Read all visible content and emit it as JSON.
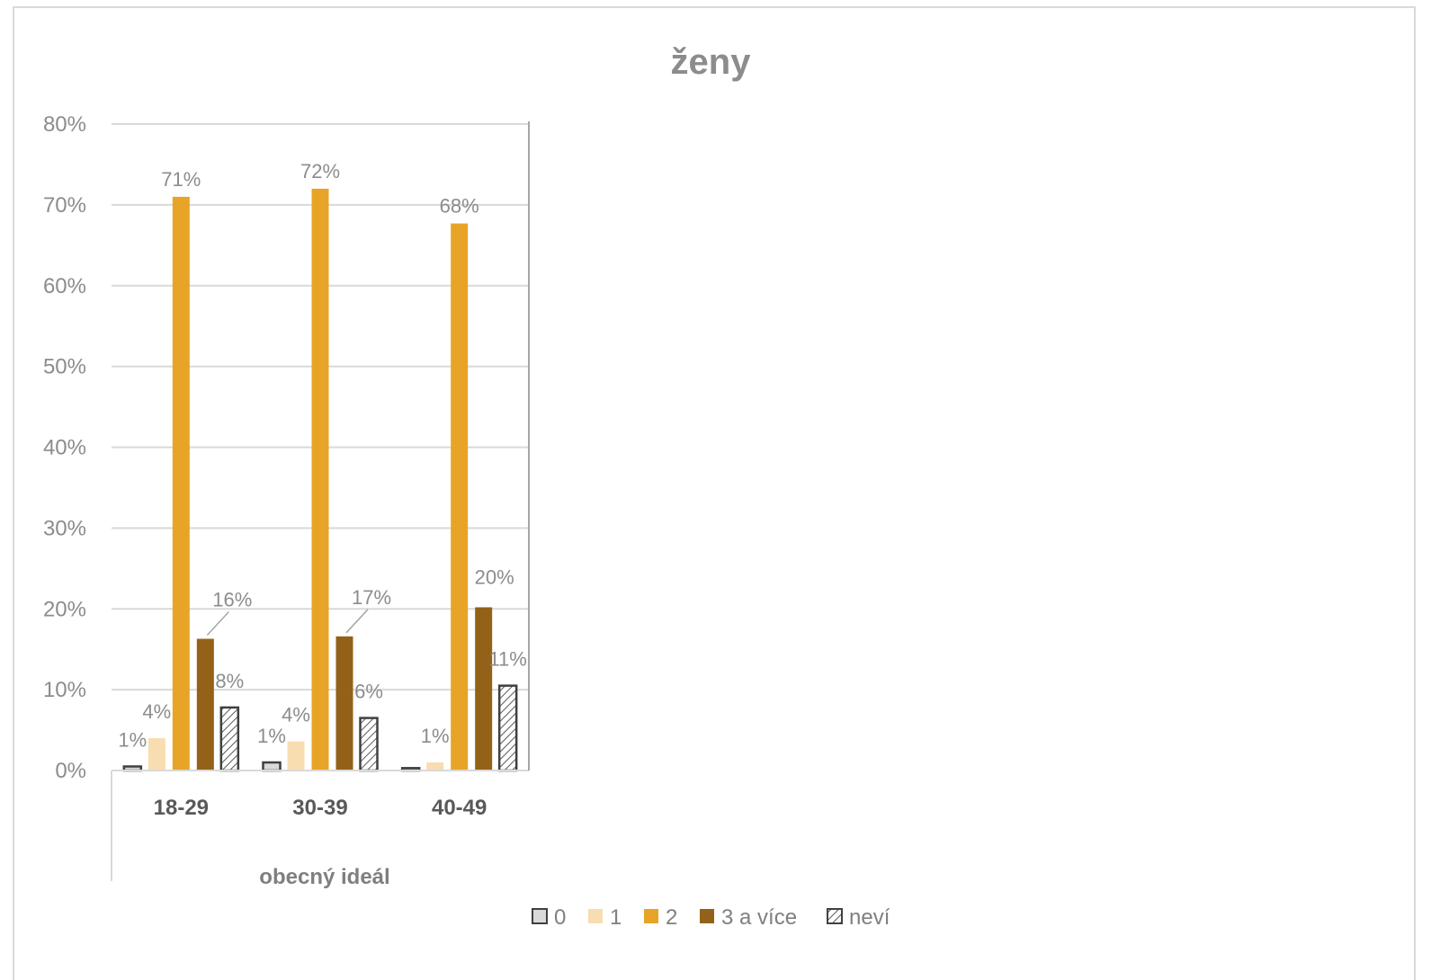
{
  "chart_data": {
    "type": "bar",
    "title": "ženy",
    "xlabel": "obecný ideál",
    "ylabel": "",
    "categories": [
      "18-29",
      "30-39",
      "40-49"
    ],
    "ylim": [
      0,
      80
    ],
    "yticks": [
      "0%",
      "10%",
      "20%",
      "30%",
      "40%",
      "50%",
      "60%",
      "70%",
      "80%"
    ],
    "grid": true,
    "legend_position": "bottom",
    "series": [
      {
        "name": "0",
        "values": [
          0.5,
          1,
          0.3
        ],
        "labels": [
          "1%",
          "1%",
          ""
        ],
        "color": "#d9d9d9",
        "pattern": "outline"
      },
      {
        "name": "1",
        "values": [
          4,
          3.6,
          1
        ],
        "labels": [
          "4%",
          "4%",
          "1%"
        ],
        "color": "#f8ddb0",
        "pattern": "solid"
      },
      {
        "name": "2",
        "values": [
          71,
          72,
          67.7
        ],
        "labels": [
          "71%",
          "72%",
          "68%"
        ],
        "color": "#e8a427",
        "pattern": "solid"
      },
      {
        "name": "3 a více",
        "values": [
          16.3,
          16.6,
          20.2
        ],
        "labels": [
          "16%",
          "17%",
          "20%"
        ],
        "color": "#936218",
        "pattern": "solid"
      },
      {
        "name": "neví",
        "values": [
          7.8,
          6.5,
          10.5
        ],
        "labels": [
          "8%",
          "6%",
          "11%"
        ],
        "color": "#404040",
        "pattern": "hatch"
      }
    ]
  }
}
